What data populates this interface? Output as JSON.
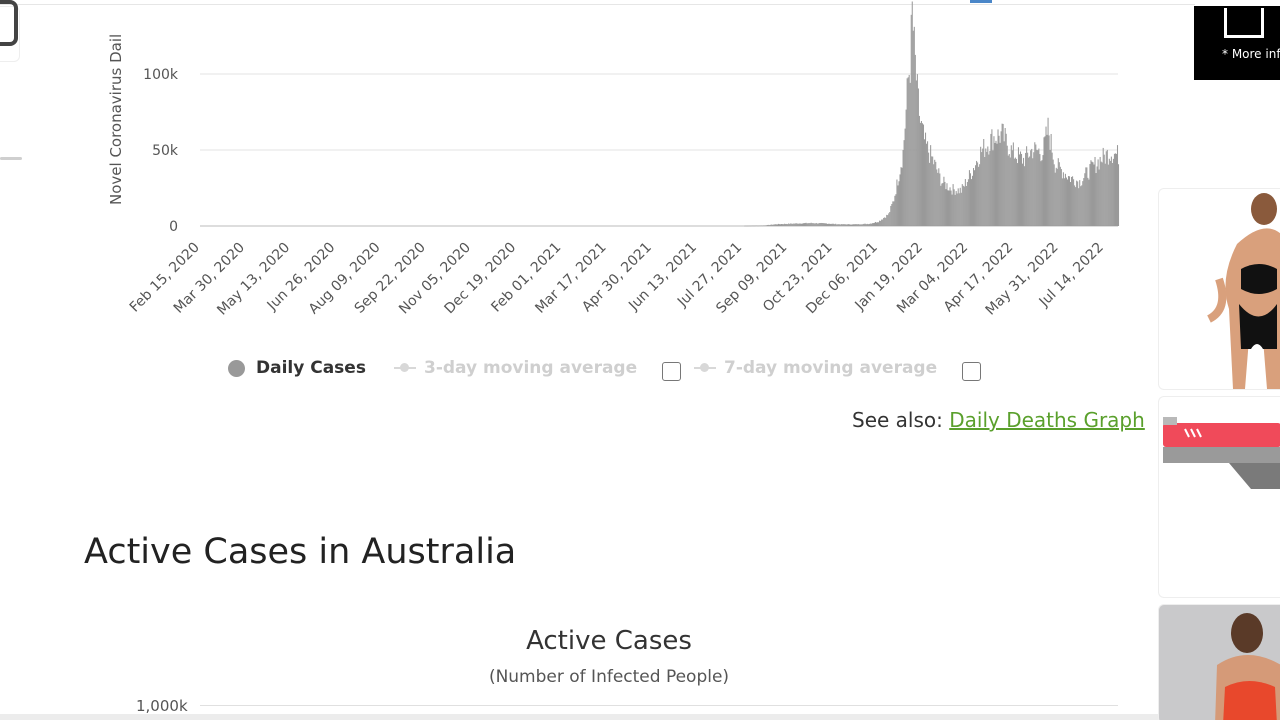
{
  "chart_data": {
    "type": "bar",
    "ylabel": "Novel Coronavirus Dail",
    "yticks": [
      {
        "value": 0,
        "label": "0"
      },
      {
        "value": 50000,
        "label": "50k"
      },
      {
        "value": 100000,
        "label": "100k"
      }
    ],
    "ylim": [
      0,
      145000
    ],
    "x_tick_labels": [
      "Feb 15, 2020",
      "Mar 30, 2020",
      "May 13, 2020",
      "Jun 26, 2020",
      "Aug 09, 2020",
      "Sep 22, 2020",
      "Nov 05, 2020",
      "Dec 19, 2020",
      "Feb 01, 2021",
      "Mar 17, 2021",
      "Apr 30, 2021",
      "Jun 13, 2021",
      "Jul 27, 2021",
      "Sep 09, 2021",
      "Oct 23, 2021",
      "Dec 06, 2021",
      "Jan 19, 2022",
      "Mar 04, 2022",
      "Apr 17, 2022",
      "May 31, 2022",
      "Jul 14, 2022"
    ],
    "x_range": [
      "2020-02-15",
      "2022-08-02"
    ],
    "grid": true,
    "series": [
      {
        "name": "Daily Cases",
        "color": "#999999",
        "points": [
          [
            "2021-08-01",
            200
          ],
          [
            "2021-08-20",
            400
          ],
          [
            "2021-09-01",
            1200
          ],
          [
            "2021-09-20",
            1700
          ],
          [
            "2021-10-05",
            2000
          ],
          [
            "2021-10-20",
            1700
          ],
          [
            "2021-11-01",
            1200
          ],
          [
            "2021-11-15",
            1100
          ],
          [
            "2021-12-01",
            1500
          ],
          [
            "2021-12-10",
            3000
          ],
          [
            "2021-12-20",
            8000
          ],
          [
            "2021-12-25",
            18000
          ],
          [
            "2021-12-30",
            35000
          ],
          [
            "2022-01-03",
            50000
          ],
          [
            "2022-01-06",
            78000
          ],
          [
            "2022-01-08",
            100000
          ],
          [
            "2022-01-10",
            110000
          ],
          [
            "2022-01-12",
            145000
          ],
          [
            "2022-01-14",
            120000
          ],
          [
            "2022-01-17",
            90000
          ],
          [
            "2022-01-20",
            70000
          ],
          [
            "2022-01-25",
            55000
          ],
          [
            "2022-02-01",
            45000
          ],
          [
            "2022-02-10",
            30000
          ],
          [
            "2022-02-20",
            25000
          ],
          [
            "2022-03-01",
            24000
          ],
          [
            "2022-03-10",
            35000
          ],
          [
            "2022-03-20",
            50000
          ],
          [
            "2022-04-01",
            60000
          ],
          [
            "2022-04-10",
            62000
          ],
          [
            "2022-04-20",
            50000
          ],
          [
            "2022-05-01",
            45000
          ],
          [
            "2022-05-10",
            52000
          ],
          [
            "2022-05-20",
            50000
          ],
          [
            "2022-05-25",
            66000
          ],
          [
            "2022-06-01",
            42000
          ],
          [
            "2022-06-15",
            33000
          ],
          [
            "2022-06-25",
            30000
          ],
          [
            "2022-07-05",
            38000
          ],
          [
            "2022-07-15",
            45000
          ],
          [
            "2022-07-25",
            50000
          ],
          [
            "2022-08-02",
            48000
          ]
        ]
      },
      {
        "name": "3-day moving average",
        "enabled": false
      },
      {
        "name": "7-day moving average",
        "enabled": false
      }
    ]
  },
  "legend": {
    "daily": "Daily Cases",
    "ma3": "3-day moving average",
    "ma7": "7-day moving average"
  },
  "see_also": {
    "prefix": "See also:",
    "link": "Daily Deaths Graph"
  },
  "section": {
    "heading": "Active Cases in Australia"
  },
  "chart2": {
    "title": "Active Cases",
    "subtitle": "(Number of Infected People)",
    "ytick_top": "1,000k"
  },
  "ads": {
    "top_text": "* More info"
  }
}
